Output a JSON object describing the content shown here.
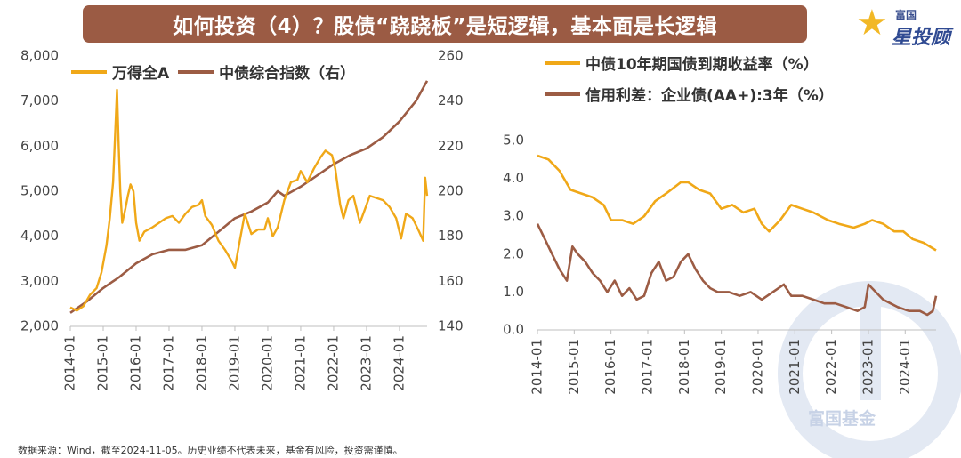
{
  "title": "如何投资（4）？股债“跷跷板”是短逻辑，基本面是长逻辑",
  "brand": {
    "small": "富国",
    "big": "星投顾",
    "watermark": "富国基金"
  },
  "footer": "数据来源：Wind，截至2024-11-05。历史业绩不代表未来，基金有风险，投资需谨慎。",
  "colors": {
    "gold": "#f0a818",
    "brown": "#9c5c44",
    "title_bg": "#9b5b44"
  },
  "chart_data": [
    {
      "type": "line",
      "title": "",
      "x_categories": [
        "2014-01",
        "2015-01",
        "2016-01",
        "2017-01",
        "2018-01",
        "2019-01",
        "2020-01",
        "2021-01",
        "2022-01",
        "2023-01",
        "2024-01"
      ],
      "y_left": {
        "ticks": [
          "2,000",
          "3,000",
          "4,000",
          "5,000",
          "6,000",
          "7,000",
          "8,000"
        ],
        "range": [
          2000,
          8000
        ]
      },
      "y_right": {
        "ticks": [
          "140",
          "160",
          "180",
          "200",
          "220",
          "240",
          "260"
        ],
        "range": [
          140,
          260
        ]
      },
      "series": [
        {
          "name": "万得全A",
          "axis": "left",
          "color": "#f0a818",
          "points": [
            [
              2014.0,
              2420
            ],
            [
              2014.2,
              2350
            ],
            [
              2014.4,
              2450
            ],
            [
              2014.6,
              2700
            ],
            [
              2014.8,
              2850
            ],
            [
              2014.95,
              3200
            ],
            [
              2015.1,
              3800
            ],
            [
              2015.2,
              4400
            ],
            [
              2015.3,
              5200
            ],
            [
              2015.37,
              6400
            ],
            [
              2015.42,
              7250
            ],
            [
              2015.47,
              6000
            ],
            [
              2015.52,
              5000
            ],
            [
              2015.58,
              4300
            ],
            [
              2015.67,
              4600
            ],
            [
              2015.75,
              4900
            ],
            [
              2015.83,
              5150
            ],
            [
              2015.92,
              5000
            ],
            [
              2016.0,
              4300
            ],
            [
              2016.1,
              3900
            ],
            [
              2016.25,
              4100
            ],
            [
              2016.5,
              4200
            ],
            [
              2016.7,
              4300
            ],
            [
              2016.9,
              4400
            ],
            [
              2017.1,
              4450
            ],
            [
              2017.3,
              4300
            ],
            [
              2017.5,
              4500
            ],
            [
              2017.7,
              4650
            ],
            [
              2017.9,
              4700
            ],
            [
              2018.0,
              4800
            ],
            [
              2018.1,
              4450
            ],
            [
              2018.3,
              4250
            ],
            [
              2018.5,
              3900
            ],
            [
              2018.7,
              3700
            ],
            [
              2018.9,
              3450
            ],
            [
              2019.0,
              3300
            ],
            [
              2019.15,
              3900
            ],
            [
              2019.3,
              4500
            ],
            [
              2019.5,
              4050
            ],
            [
              2019.7,
              4150
            ],
            [
              2019.9,
              4150
            ],
            [
              2020.0,
              4400
            ],
            [
              2020.15,
              4000
            ],
            [
              2020.3,
              4200
            ],
            [
              2020.5,
              4800
            ],
            [
              2020.7,
              5200
            ],
            [
              2020.9,
              5250
            ],
            [
              2021.0,
              5450
            ],
            [
              2021.2,
              5200
            ],
            [
              2021.4,
              5500
            ],
            [
              2021.6,
              5750
            ],
            [
              2021.75,
              5900
            ],
            [
              2021.95,
              5800
            ],
            [
              2022.05,
              5500
            ],
            [
              2022.2,
              4700
            ],
            [
              2022.3,
              4400
            ],
            [
              2022.45,
              4800
            ],
            [
              2022.6,
              4900
            ],
            [
              2022.8,
              4300
            ],
            [
              2022.95,
              4600
            ],
            [
              2023.1,
              4900
            ],
            [
              2023.3,
              4850
            ],
            [
              2023.5,
              4800
            ],
            [
              2023.7,
              4650
            ],
            [
              2023.9,
              4400
            ],
            [
              2024.05,
              3950
            ],
            [
              2024.2,
              4500
            ],
            [
              2024.4,
              4400
            ],
            [
              2024.6,
              4100
            ],
            [
              2024.72,
              3900
            ],
            [
              2024.78,
              5300
            ],
            [
              2024.84,
              4900
            ]
          ]
        },
        {
          "name": "中债综合指数（右）",
          "axis": "right",
          "color": "#9c5c44",
          "points": [
            [
              2014.0,
              146
            ],
            [
              2014.5,
              151
            ],
            [
              2015.0,
              157
            ],
            [
              2015.5,
              162
            ],
            [
              2016.0,
              168
            ],
            [
              2016.5,
              172
            ],
            [
              2017.0,
              174
            ],
            [
              2017.5,
              174
            ],
            [
              2018.0,
              176
            ],
            [
              2018.5,
              182
            ],
            [
              2019.0,
              188
            ],
            [
              2019.5,
              191
            ],
            [
              2020.0,
              195
            ],
            [
              2020.3,
              200
            ],
            [
              2020.5,
              198
            ],
            [
              2021.0,
              202
            ],
            [
              2021.5,
              207
            ],
            [
              2022.0,
              212
            ],
            [
              2022.5,
              216
            ],
            [
              2023.0,
              219
            ],
            [
              2023.5,
              224
            ],
            [
              2024.0,
              231
            ],
            [
              2024.5,
              240
            ],
            [
              2024.84,
              249
            ]
          ]
        }
      ]
    },
    {
      "type": "line",
      "title": "",
      "x_categories": [
        "2014-01",
        "2015-01",
        "2016-01",
        "2017-01",
        "2018-01",
        "2019-01",
        "2020-01",
        "2021-01",
        "2022-01",
        "2023-01",
        "2024-01"
      ],
      "y": {
        "ticks": [
          "0.0",
          "1.0",
          "2.0",
          "3.0",
          "4.0",
          "5.0"
        ],
        "range": [
          0,
          5
        ]
      },
      "series": [
        {
          "name": "中债10年期国债到期收益率（%）",
          "color": "#f0a818",
          "points": [
            [
              2014.0,
              4.6
            ],
            [
              2014.3,
              4.5
            ],
            [
              2014.6,
              4.2
            ],
            [
              2014.9,
              3.7
            ],
            [
              2015.2,
              3.6
            ],
            [
              2015.5,
              3.5
            ],
            [
              2015.8,
              3.3
            ],
            [
              2016.0,
              2.9
            ],
            [
              2016.3,
              2.9
            ],
            [
              2016.6,
              2.8
            ],
            [
              2016.9,
              3.0
            ],
            [
              2017.2,
              3.4
            ],
            [
              2017.5,
              3.6
            ],
            [
              2017.9,
              3.9
            ],
            [
              2018.1,
              3.9
            ],
            [
              2018.4,
              3.7
            ],
            [
              2018.7,
              3.6
            ],
            [
              2019.0,
              3.2
            ],
            [
              2019.3,
              3.3
            ],
            [
              2019.6,
              3.1
            ],
            [
              2019.9,
              3.2
            ],
            [
              2020.1,
              2.8
            ],
            [
              2020.3,
              2.6
            ],
            [
              2020.6,
              2.9
            ],
            [
              2020.9,
              3.3
            ],
            [
              2021.2,
              3.2
            ],
            [
              2021.5,
              3.1
            ],
            [
              2021.9,
              2.9
            ],
            [
              2022.2,
              2.8
            ],
            [
              2022.6,
              2.7
            ],
            [
              2022.9,
              2.8
            ],
            [
              2023.1,
              2.9
            ],
            [
              2023.4,
              2.8
            ],
            [
              2023.7,
              2.6
            ],
            [
              2023.95,
              2.6
            ],
            [
              2024.2,
              2.4
            ],
            [
              2024.5,
              2.3
            ],
            [
              2024.84,
              2.1
            ]
          ]
        },
        {
          "name": "信用利差：企业债(AA+):3年（%）",
          "color": "#9c5c44",
          "points": [
            [
              2014.0,
              2.8
            ],
            [
              2014.2,
              2.4
            ],
            [
              2014.4,
              2.0
            ],
            [
              2014.6,
              1.6
            ],
            [
              2014.8,
              1.3
            ],
            [
              2014.95,
              2.2
            ],
            [
              2015.1,
              2.0
            ],
            [
              2015.3,
              1.8
            ],
            [
              2015.5,
              1.5
            ],
            [
              2015.7,
              1.3
            ],
            [
              2015.9,
              1.0
            ],
            [
              2016.1,
              1.3
            ],
            [
              2016.3,
              0.9
            ],
            [
              2016.5,
              1.1
            ],
            [
              2016.7,
              0.8
            ],
            [
              2016.9,
              0.9
            ],
            [
              2017.1,
              1.5
            ],
            [
              2017.3,
              1.8
            ],
            [
              2017.5,
              1.3
            ],
            [
              2017.7,
              1.4
            ],
            [
              2017.9,
              1.8
            ],
            [
              2018.1,
              2.0
            ],
            [
              2018.3,
              1.6
            ],
            [
              2018.5,
              1.3
            ],
            [
              2018.7,
              1.1
            ],
            [
              2018.9,
              1.0
            ],
            [
              2019.2,
              1.0
            ],
            [
              2019.5,
              0.9
            ],
            [
              2019.8,
              1.0
            ],
            [
              2020.1,
              0.8
            ],
            [
              2020.4,
              1.0
            ],
            [
              2020.7,
              1.2
            ],
            [
              2020.9,
              0.9
            ],
            [
              2021.2,
              0.9
            ],
            [
              2021.5,
              0.8
            ],
            [
              2021.8,
              0.7
            ],
            [
              2022.1,
              0.7
            ],
            [
              2022.4,
              0.6
            ],
            [
              2022.7,
              0.5
            ],
            [
              2022.9,
              0.6
            ],
            [
              2023.0,
              1.2
            ],
            [
              2023.2,
              1.0
            ],
            [
              2023.4,
              0.8
            ],
            [
              2023.6,
              0.7
            ],
            [
              2023.8,
              0.6
            ],
            [
              2024.1,
              0.5
            ],
            [
              2024.4,
              0.5
            ],
            [
              2024.6,
              0.4
            ],
            [
              2024.75,
              0.5
            ],
            [
              2024.84,
              0.9
            ]
          ]
        }
      ]
    }
  ]
}
